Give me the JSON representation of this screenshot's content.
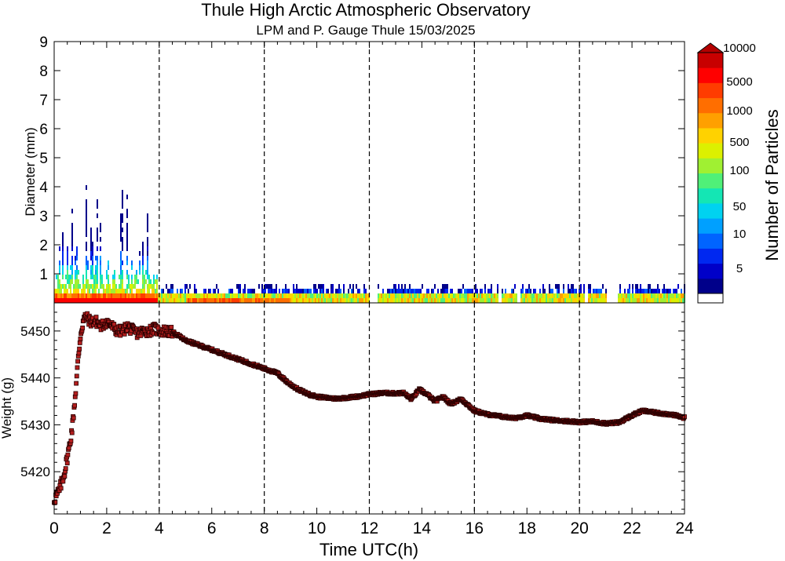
{
  "chart_data": [
    {
      "type": "heatmap",
      "title": "Thule High Arctic Atmospheric Observatory",
      "subtitle": "LPM and P. Gauge Thule 15/03/2025",
      "ylabel": "Diameter (mm)",
      "xlim": [
        0,
        24
      ],
      "ylim": [
        0,
        9
      ],
      "yticks": [
        1,
        2,
        3,
        4,
        5,
        6,
        7,
        8,
        9
      ],
      "vlines": [
        4,
        8,
        12,
        16,
        20
      ],
      "colorbar": {
        "label": "Number of Particles",
        "ticks": [
          "5",
          "10",
          "50",
          "100",
          "500",
          "1000",
          "5000",
          "10000"
        ],
        "colors": [
          "#00008a",
          "#0000c8",
          "#0028f0",
          "#0064ff",
          "#00a0ff",
          "#00d2f0",
          "#14e6b4",
          "#50f078",
          "#a0f032",
          "#dcf000",
          "#ffd200",
          "#ffa000",
          "#ff6e00",
          "#ff3c00",
          "#ff0000",
          "#c80000"
        ]
      },
      "description_ranges": [
        {
          "from_h": 0.0,
          "to_h": 3.9,
          "max_diameter_mm": 4.0
        },
        {
          "from_h": 3.9,
          "to_h": 24.0,
          "max_diameter_mm": 0.6
        }
      ]
    },
    {
      "type": "scatter",
      "xlabel": "Time UTC(h)",
      "ylabel": "Weight (g)",
      "xlim": [
        0,
        24
      ],
      "ylim": [
        5411,
        5456
      ],
      "xticks": [
        0,
        2,
        4,
        6,
        8,
        10,
        12,
        14,
        16,
        18,
        20,
        22,
        24
      ],
      "yticks": [
        5420,
        5430,
        5440,
        5450
      ],
      "vlines": [
        4,
        8,
        12,
        16,
        20
      ],
      "marker_color": "#b41e1e",
      "series": [
        {
          "x": [
            0.0,
            0.1,
            0.2,
            0.3,
            0.4,
            0.5,
            0.6,
            0.7,
            0.8,
            0.9,
            1.0,
            1.1,
            1.2,
            1.4,
            1.6,
            1.8,
            2.0,
            2.2,
            2.4,
            2.6,
            2.8,
            3.0,
            3.2,
            3.4,
            3.6,
            3.8,
            4.0,
            4.3,
            4.6,
            5.0,
            5.5,
            6.0,
            6.5,
            7.0,
            7.5,
            8.0,
            8.5,
            8.9,
            9.3,
            9.7,
            10.0,
            10.3,
            10.7,
            11.0,
            11.5,
            12.0,
            12.5,
            13.0,
            13.3,
            13.6,
            13.9,
            14.2,
            14.5,
            14.8,
            15.1,
            15.5,
            16.0,
            16.5,
            17.0,
            17.5,
            18.0,
            18.5,
            19.0,
            19.5,
            20.0,
            20.5,
            21.0,
            21.5,
            22.0,
            22.4,
            23.0,
            23.5,
            24.0
          ],
          "y": [
            5414,
            5415,
            5416,
            5418,
            5420,
            5423,
            5426,
            5430,
            5436,
            5443,
            5449,
            5452,
            5453,
            5452,
            5452,
            5451,
            5452,
            5451,
            5450,
            5450,
            5451,
            5450,
            5449.5,
            5450,
            5450,
            5450.5,
            5450,
            5450,
            5449.5,
            5448,
            5447,
            5446,
            5445,
            5444,
            5443,
            5442,
            5441,
            5439,
            5437.5,
            5436.5,
            5436,
            5435.8,
            5435.6,
            5435.7,
            5436,
            5436.5,
            5436.8,
            5436.7,
            5436.8,
            5435.5,
            5437.5,
            5436.5,
            5435,
            5436,
            5434.5,
            5435.5,
            5433,
            5432.2,
            5431.8,
            5431.4,
            5432,
            5431.3,
            5431,
            5430.8,
            5430.6,
            5430.7,
            5430.3,
            5430.5,
            5432,
            5433,
            5432.5,
            5432.2,
            5431.5
          ]
        }
      ]
    }
  ]
}
